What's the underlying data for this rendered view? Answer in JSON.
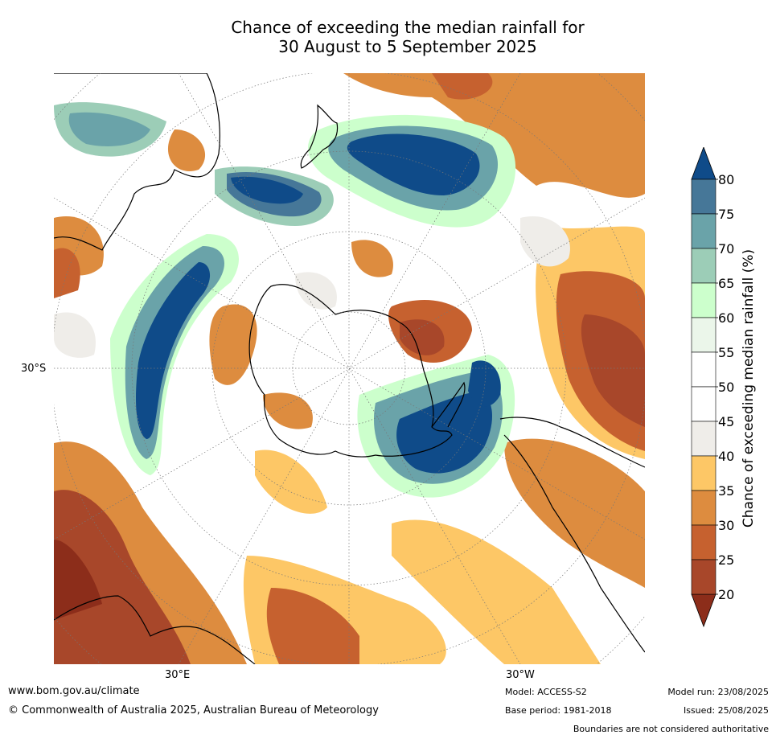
{
  "title_line1": "Chance of exceeding the median rainfall for",
  "title_line2": "30 August to 5 September 2025",
  "map": {
    "projection": "south-polar-stereographic",
    "lat_label": "30°S",
    "lon_labels": [
      "30°E",
      "30°W"
    ],
    "ocean_color": "#ffffff",
    "coast_color": "#000000",
    "grid_color": "#777777"
  },
  "legend": {
    "title": "Chance of exceeding median rainfall (%)",
    "ticks": [
      "20",
      "25",
      "30",
      "35",
      "40",
      "45",
      "50",
      "55",
      "60",
      "65",
      "70",
      "75",
      "80"
    ],
    "colors": [
      "#8c2d1a",
      "#a8472a",
      "#c6612f",
      "#dd8c3f",
      "#fdc766",
      "#efede9",
      "#ffffff",
      "#ffffff",
      "#ebf6ea",
      "#ccffcc",
      "#9ccdb7",
      "#6aa3a9",
      "#467798",
      "#0f4b89"
    ]
  },
  "footer": {
    "website": "www.bom.gov.au/climate",
    "copyright": "© Commonwealth of Australia 2025, Australian Bureau of Meteorology",
    "model": "Model: ACCESS-S2",
    "base_period": "Base period: 1981-2018",
    "model_run": "Model run: 23/08/2025",
    "issued": "Issued: 25/08/2025",
    "disclaimer": "Boundaries are not considered authoritative"
  }
}
